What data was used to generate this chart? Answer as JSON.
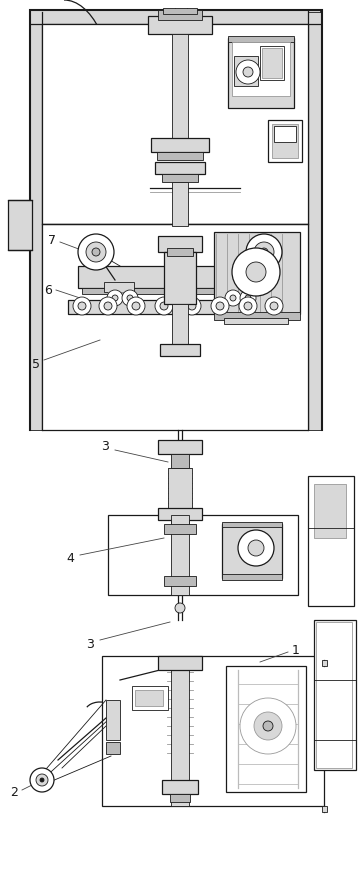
{
  "bg_color": "#ffffff",
  "line_color": "#1a1a1a",
  "gray_color": "#999999",
  "light_gray": "#d8d8d8",
  "med_gray": "#bbbbbb",
  "dark_gray": "#444444",
  "figsize": [
    3.63,
    8.92
  ],
  "dpi": 100,
  "lw_thin": 0.6,
  "lw_med": 0.9,
  "lw_thick": 1.3,
  "lw_frame": 1.5
}
